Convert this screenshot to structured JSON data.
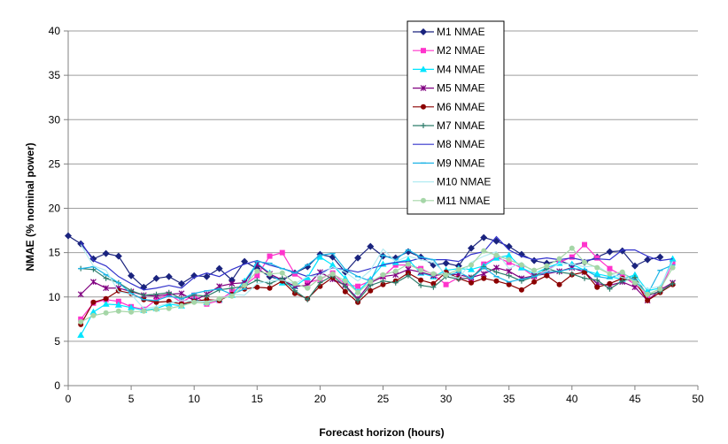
{
  "chart_data": {
    "type": "line",
    "xlabel": "Forecast horizon (hours)",
    "ylabel": "NMAE (% nominal power)",
    "xlim": [
      0,
      50
    ],
    "ylim": [
      0,
      40
    ],
    "x_ticks": [
      0,
      5,
      10,
      15,
      20,
      25,
      30,
      35,
      40,
      45,
      50
    ],
    "y_ticks": [
      0,
      5,
      10,
      15,
      20,
      25,
      30,
      35,
      40
    ],
    "grid": "horizontal",
    "legend_position": "top-center-right",
    "x": [
      1,
      2,
      3,
      4,
      5,
      6,
      7,
      8,
      9,
      10,
      11,
      12,
      13,
      14,
      15,
      16,
      17,
      18,
      19,
      20,
      21,
      22,
      23,
      24,
      25,
      26,
      27,
      28,
      29,
      30,
      31,
      32,
      33,
      34,
      35,
      36,
      37,
      38,
      39,
      40,
      41,
      42,
      43,
      44,
      45,
      46,
      47,
      48
    ],
    "series": [
      {
        "name": "M1 NMAE",
        "color": "#1a237e",
        "marker": "diamond",
        "values": [
          16.9,
          16.0,
          14.3,
          14.9,
          14.6,
          12.4,
          11.1,
          12.1,
          12.3,
          11.5,
          12.4,
          12.3,
          13.2,
          11.9,
          14.0,
          13.2,
          12.3,
          11.9,
          12.7,
          13.4,
          14.8,
          14.5,
          12.8,
          14.4,
          15.7,
          14.6,
          14.4,
          15.1,
          14.5,
          13.6,
          13.8,
          13.5,
          15.5,
          16.7,
          16.3,
          15.7,
          14.8,
          14.1,
          13.8,
          14.1,
          13.6,
          13.9,
          14.5,
          15.1,
          15.2,
          13.5,
          14.2,
          14.5
        ],
        "values_offset_start": 0
      },
      {
        "name": "M2 NMAE",
        "color": "#ff33cc",
        "marker": "square",
        "values": [
          7.5,
          9.3,
          9.7,
          9.5,
          8.9,
          8.6,
          9.7,
          10.3,
          9.4,
          10.2,
          9.2,
          9.6,
          10.6,
          11.3,
          12.4,
          14.6,
          15.0,
          12.6,
          11.6,
          12.0,
          12.7,
          11.4,
          11.2,
          11.8,
          12.3,
          13.6,
          13.6,
          13.2,
          12.5,
          11.4,
          12.2,
          12.0,
          13.7,
          14.5,
          13.9,
          13.3,
          12.3,
          13.0,
          13.9,
          14.5,
          15.9,
          14.4,
          13.2,
          12.4,
          11.4,
          10.1,
          10.7,
          13.9
        ]
      },
      {
        "name": "M4 NMAE",
        "color": "#00e5ff",
        "marker": "triangle",
        "values": [
          5.7,
          8.3,
          9.2,
          9.1,
          8.8,
          8.5,
          8.7,
          9.2,
          9.0,
          9.7,
          9.4,
          9.7,
          10.2,
          11.8,
          13.8,
          12.7,
          11.6,
          11.2,
          12.2,
          14.5,
          13.6,
          12.1,
          10.6,
          12.0,
          13.7,
          13.9,
          14.2,
          12.7,
          12.3,
          13.0,
          13.2,
          13.1,
          13.5,
          14.4,
          14.7,
          13.3,
          12.6,
          13.3,
          13.8,
          13.7,
          13.0,
          12.6,
          12.3,
          12.0,
          12.5,
          10.7,
          11.0,
          14.3
        ]
      },
      {
        "name": "M5 NMAE",
        "color": "#800080",
        "marker": "asterisk",
        "values": [
          10.3,
          11.7,
          11.0,
          11.0,
          10.6,
          10.2,
          10.1,
          10.3,
          10.4,
          9.6,
          10.3,
          11.2,
          11.5,
          11.6,
          13.7,
          12.6,
          11.9,
          11.2,
          11.3,
          12.8,
          12.0,
          11.3,
          9.8,
          11.6,
          12.3,
          12.5,
          13.1,
          12.8,
          12.4,
          12.6,
          12.5,
          12.2,
          12.6,
          13.3,
          12.9,
          12.1,
          12.4,
          12.6,
          12.9,
          13.3,
          12.8,
          11.5,
          11.3,
          11.7,
          11.1,
          9.6,
          10.8,
          11.6
        ]
      },
      {
        "name": "M6 NMAE",
        "color": "#8b0000",
        "marker": "circle",
        "values": [
          6.9,
          9.4,
          9.8,
          10.7,
          10.4,
          9.7,
          9.4,
          9.5,
          9.2,
          9.5,
          9.7,
          9.6,
          10.3,
          10.9,
          11.1,
          11.0,
          11.8,
          10.4,
          9.8,
          11.2,
          12.2,
          10.6,
          9.4,
          10.7,
          11.4,
          11.8,
          12.7,
          11.9,
          11.5,
          12.8,
          12.1,
          11.6,
          12.1,
          11.8,
          11.4,
          10.8,
          11.7,
          12.4,
          11.4,
          12.5,
          12.8,
          11.1,
          11.5,
          12.1,
          11.8,
          9.6,
          10.5,
          11.4
        ]
      },
      {
        "name": "M7 NMAE",
        "color": "#2e7d6b",
        "marker": "plus",
        "values": [
          13.2,
          13.1,
          12.1,
          11.6,
          10.7,
          10.2,
          10.3,
          10.5,
          9.8,
          10.2,
          10.1,
          10.8,
          11.0,
          11.2,
          11.9,
          11.5,
          12.1,
          10.7,
          9.7,
          11.6,
          12.4,
          11.2,
          9.6,
          11.3,
          11.8,
          11.6,
          12.4,
          11.3,
          11.1,
          12.3,
          12.0,
          12.2,
          13.4,
          12.8,
          12.4,
          11.8,
          12.3,
          13.2,
          12.8,
          12.6,
          12.1,
          11.9,
          10.9,
          11.8,
          12.2,
          10.2,
          10.6,
          11.5
        ]
      },
      {
        "name": "M8 NMAE",
        "color": "#3333cc",
        "marker": "none",
        "values": [
          16.2,
          14.1,
          13.5,
          12.3,
          11.5,
          10.8,
          11.0,
          11.3,
          11.0,
          12.2,
          12.7,
          12.3,
          13.1,
          13.7,
          14.1,
          13.6,
          13.2,
          12.8,
          12.3,
          12.7,
          13.3,
          13.1,
          12.8,
          13.2,
          13.6,
          13.9,
          14.0,
          14.4,
          14.2,
          14.2,
          14.0,
          14.8,
          15.1,
          16.8,
          15.3,
          14.6,
          14.2,
          14.4,
          14.2,
          14.4,
          14.1,
          14.3,
          14.2,
          15.3,
          15.3,
          14.6,
          14.1,
          14.3
        ]
      },
      {
        "name": "M9 NMAE",
        "color": "#1eb4e6",
        "marker": "dash",
        "values": [
          13.2,
          13.4,
          12.5,
          11.6,
          10.4,
          9.7,
          9.6,
          10.1,
          9.8,
          10.4,
          10.7,
          10.9,
          10.3,
          10.9,
          14.0,
          13.8,
          13.2,
          12.7,
          13.6,
          14.7,
          14.9,
          13.1,
          12.3,
          11.8,
          14.7,
          14.2,
          15.3,
          14.5,
          14.2,
          12.4,
          12.8,
          12.1,
          13.3,
          12.3,
          11.7,
          12.0,
          12.3,
          12.8,
          12.9,
          13.2,
          13.1,
          12.3,
          12.1,
          12.7,
          11.9,
          10.3,
          13.0,
          13.6
        ]
      },
      {
        "name": "M10 NMAE",
        "color": "#b2ebf2",
        "marker": "none",
        "values": [
          15.9,
          13.5,
          13.0,
          10.6,
          10.3,
          8.7,
          8.9,
          9.3,
          9.6,
          9.5,
          9.5,
          9.7,
          10.3,
          10.2,
          11.5,
          11.8,
          11.9,
          11.5,
          12.3,
          12.4,
          13.4,
          12.8,
          11.8,
          13.0,
          15.4,
          14.0,
          14.6,
          14.2,
          13.9,
          12.6,
          12.1,
          13.9,
          14.6,
          15.1,
          13.2,
          13.9,
          12.7,
          12.9,
          13.8,
          13.7,
          13.4,
          13.5,
          12.6,
          12.2,
          11.8,
          10.9,
          11.2,
          14.0
        ]
      },
      {
        "name": "M11 NMAE",
        "color": "#a5d6a7",
        "marker": "circle",
        "values": [
          7.2,
          7.9,
          8.2,
          8.4,
          8.3,
          8.4,
          8.6,
          8.7,
          9.0,
          9.4,
          9.3,
          9.8,
          10.1,
          11.3,
          12.9,
          12.6,
          12.7,
          11.5,
          11.0,
          12.1,
          12.6,
          11.8,
          10.5,
          11.7,
          12.5,
          12.9,
          13.7,
          13.0,
          12.6,
          12.5,
          13.1,
          13.6,
          15.2,
          14.7,
          14.2,
          13.6,
          13.0,
          13.5,
          14.3,
          15.5,
          13.9,
          13.3,
          12.6,
          12.8,
          11.6,
          10.3,
          10.9,
          13.3
        ]
      }
    ]
  }
}
